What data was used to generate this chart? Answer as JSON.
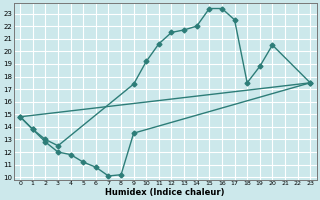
{
  "xlabel": "Humidex (Indice chaleur)",
  "bg_color": "#cce8eb",
  "grid_color": "#ffffff",
  "line_color": "#2d7d78",
  "xlim": [
    -0.5,
    23.5
  ],
  "ylim": [
    9.8,
    23.8
  ],
  "yticks": [
    10,
    11,
    12,
    13,
    14,
    15,
    16,
    17,
    18,
    19,
    20,
    21,
    22,
    23
  ],
  "xticks": [
    0,
    1,
    2,
    3,
    4,
    5,
    6,
    7,
    8,
    9,
    10,
    11,
    12,
    13,
    14,
    15,
    16,
    17,
    18,
    19,
    20,
    21,
    22,
    23
  ],
  "curve1_x": [
    0,
    1,
    2,
    3,
    9,
    10,
    11,
    12,
    13,
    14,
    15,
    16,
    17,
    18,
    19,
    20,
    23
  ],
  "curve1_y": [
    14.8,
    13.8,
    13.0,
    12.5,
    17.4,
    19.2,
    20.6,
    21.5,
    21.7,
    22.0,
    23.4,
    23.4,
    22.5,
    17.5,
    18.8,
    20.5,
    17.5
  ],
  "curve2_x": [
    0,
    1,
    2,
    3,
    4,
    5,
    6,
    7,
    8,
    9,
    23
  ],
  "curve2_y": [
    14.8,
    13.8,
    12.8,
    12.0,
    11.8,
    11.2,
    10.8,
    10.1,
    10.2,
    13.5,
    17.5
  ],
  "curve3_x": [
    0,
    23
  ],
  "curve3_y": [
    14.8,
    17.5
  ]
}
